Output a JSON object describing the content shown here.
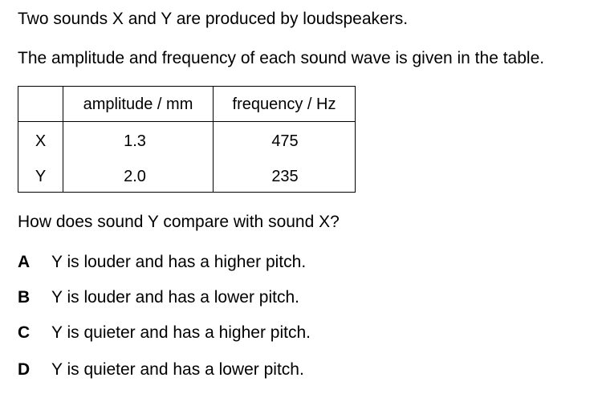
{
  "intro": {
    "line1": "Two sounds X and Y are produced by loudspeakers.",
    "line2": "The amplitude and frequency of each sound wave is given in the table."
  },
  "table": {
    "headers": [
      "",
      "amplitude / mm",
      "frequency / Hz"
    ],
    "rows": [
      {
        "label": "X",
        "amplitude": "1.3",
        "frequency": "475"
      },
      {
        "label": "Y",
        "amplitude": "2.0",
        "frequency": "235"
      }
    ]
  },
  "question": "How does sound Y compare with sound X?",
  "options": [
    {
      "letter": "A",
      "text": "Y is louder and has a higher pitch."
    },
    {
      "letter": "B",
      "text": "Y is louder and has a lower pitch."
    },
    {
      "letter": "C",
      "text": "Y is quieter and has a higher pitch."
    },
    {
      "letter": "D",
      "text": "Y is quieter and has a lower pitch."
    }
  ]
}
